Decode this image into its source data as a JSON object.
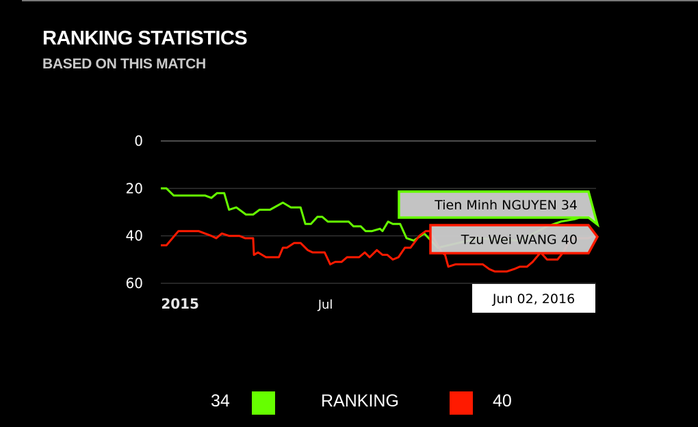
{
  "header": {
    "title": "RANKING STATISTICS",
    "subtitle": "BASED ON THIS MATCH"
  },
  "chart_data": {
    "type": "line",
    "title": "RANKING STATISTICS",
    "subtitle": "BASED ON THIS MATCH",
    "ylim": [
      0,
      60
    ],
    "y_reversed": true,
    "y_ticks": [
      "0",
      "20",
      "40",
      "60"
    ],
    "x_ticks": [
      {
        "label": "2015",
        "date": "2015-01-01"
      },
      {
        "label": "Jul",
        "date": "2015-07-01"
      }
    ],
    "x_range": [
      "2014-12-08",
      "2016-06-02"
    ],
    "grid": true,
    "series": [
      {
        "name": "Tien Minh NGUYEN",
        "color": "#66ff00",
        "points": [
          [
            "2014-12-08",
            20
          ],
          [
            "2014-12-15",
            20
          ],
          [
            "2014-12-24",
            23
          ],
          [
            "2015-02-01",
            23
          ],
          [
            "2015-02-09",
            24
          ],
          [
            "2015-02-16",
            22
          ],
          [
            "2015-02-25",
            22
          ],
          [
            "2015-03-03",
            29
          ],
          [
            "2015-03-12",
            28
          ],
          [
            "2015-03-24",
            31
          ],
          [
            "2015-04-02",
            31
          ],
          [
            "2015-04-10",
            29
          ],
          [
            "2015-04-23",
            29
          ],
          [
            "2015-05-09",
            26
          ],
          [
            "2015-05-19",
            28
          ],
          [
            "2015-05-31",
            28
          ],
          [
            "2015-06-06",
            35
          ],
          [
            "2015-06-13",
            35
          ],
          [
            "2015-06-21",
            32
          ],
          [
            "2015-06-27",
            32
          ],
          [
            "2015-07-04",
            34
          ],
          [
            "2015-07-30",
            34
          ],
          [
            "2015-08-05",
            36
          ],
          [
            "2015-08-14",
            36
          ],
          [
            "2015-08-20",
            38
          ],
          [
            "2015-08-28",
            38
          ],
          [
            "2015-09-07",
            37
          ],
          [
            "2015-09-10",
            38
          ],
          [
            "2015-09-17",
            34
          ],
          [
            "2015-09-23",
            35
          ],
          [
            "2015-10-02",
            35
          ],
          [
            "2015-10-10",
            41
          ],
          [
            "2015-10-19",
            42
          ],
          [
            "2015-11-01",
            39
          ],
          [
            "2015-11-18",
            45
          ],
          [
            "2016-01-08",
            41
          ],
          [
            "2016-02-28",
            42
          ],
          [
            "2016-04-02",
            36
          ],
          [
            "2016-04-19",
            34
          ],
          [
            "2016-05-06",
            33
          ],
          [
            "2016-05-15",
            32
          ],
          [
            "2016-05-28",
            32
          ],
          [
            "2016-06-02",
            34
          ]
        ]
      },
      {
        "name": "Tzu Wei WANG",
        "color": "#ff1a00",
        "points": [
          [
            "2014-12-08",
            44
          ],
          [
            "2014-12-15",
            44
          ],
          [
            "2014-12-30",
            38
          ],
          [
            "2015-01-24",
            38
          ],
          [
            "2015-02-01",
            39
          ],
          [
            "2015-02-09",
            40
          ],
          [
            "2015-02-15",
            41
          ],
          [
            "2015-02-22",
            39
          ],
          [
            "2015-03-03",
            40
          ],
          [
            "2015-03-16",
            40
          ],
          [
            "2015-03-23",
            41
          ],
          [
            "2015-04-02",
            41
          ],
          [
            "2015-04-03",
            48
          ],
          [
            "2015-04-08",
            47
          ],
          [
            "2015-04-18",
            49
          ],
          [
            "2015-05-04",
            49
          ],
          [
            "2015-05-09",
            45
          ],
          [
            "2015-05-14",
            45
          ],
          [
            "2015-05-23",
            43
          ],
          [
            "2015-05-31",
            43
          ],
          [
            "2015-06-09",
            46
          ],
          [
            "2015-06-15",
            47
          ],
          [
            "2015-06-30",
            47
          ],
          [
            "2015-07-07",
            52
          ],
          [
            "2015-07-13",
            51
          ],
          [
            "2015-07-21",
            51
          ],
          [
            "2015-07-28",
            49
          ],
          [
            "2015-08-12",
            49
          ],
          [
            "2015-08-19",
            47
          ],
          [
            "2015-08-25",
            49
          ],
          [
            "2015-09-03",
            46
          ],
          [
            "2015-09-10",
            48
          ],
          [
            "2015-09-16",
            48
          ],
          [
            "2015-09-23",
            50
          ],
          [
            "2015-09-30",
            49
          ],
          [
            "2015-10-08",
            45
          ],
          [
            "2015-10-15",
            45
          ],
          [
            "2015-10-26",
            40
          ],
          [
            "2015-11-03",
            38
          ],
          [
            "2015-11-08",
            38
          ],
          [
            "2015-11-23",
            47
          ],
          [
            "2015-11-27",
            48
          ],
          [
            "2015-12-01",
            53
          ],
          [
            "2015-12-10",
            52
          ],
          [
            "2016-01-13",
            52
          ],
          [
            "2016-01-21",
            54
          ],
          [
            "2016-01-28",
            55
          ],
          [
            "2016-02-12",
            55
          ],
          [
            "2016-02-21",
            54
          ],
          [
            "2016-02-28",
            53
          ],
          [
            "2016-03-08",
            53
          ],
          [
            "2016-03-15",
            51
          ],
          [
            "2016-03-25",
            47
          ],
          [
            "2016-04-02",
            50
          ],
          [
            "2016-04-15",
            50
          ],
          [
            "2016-04-22",
            47
          ],
          [
            "2016-05-02",
            41
          ],
          [
            "2016-05-23",
            41
          ],
          [
            "2016-06-02",
            40
          ]
        ]
      }
    ],
    "tooltip": {
      "date": "Jun 02, 2016",
      "entries": [
        {
          "label": "Tien Minh NGUYEN 34",
          "color": "#66ff00"
        },
        {
          "label": "Tzu Wei WANG 40",
          "color": "#ff1a00"
        }
      ]
    }
  },
  "legend": {
    "left_value": "34",
    "left_color": "#66ff00",
    "center_label": "RANKING",
    "right_color": "#ff1a00",
    "right_value": "40"
  }
}
